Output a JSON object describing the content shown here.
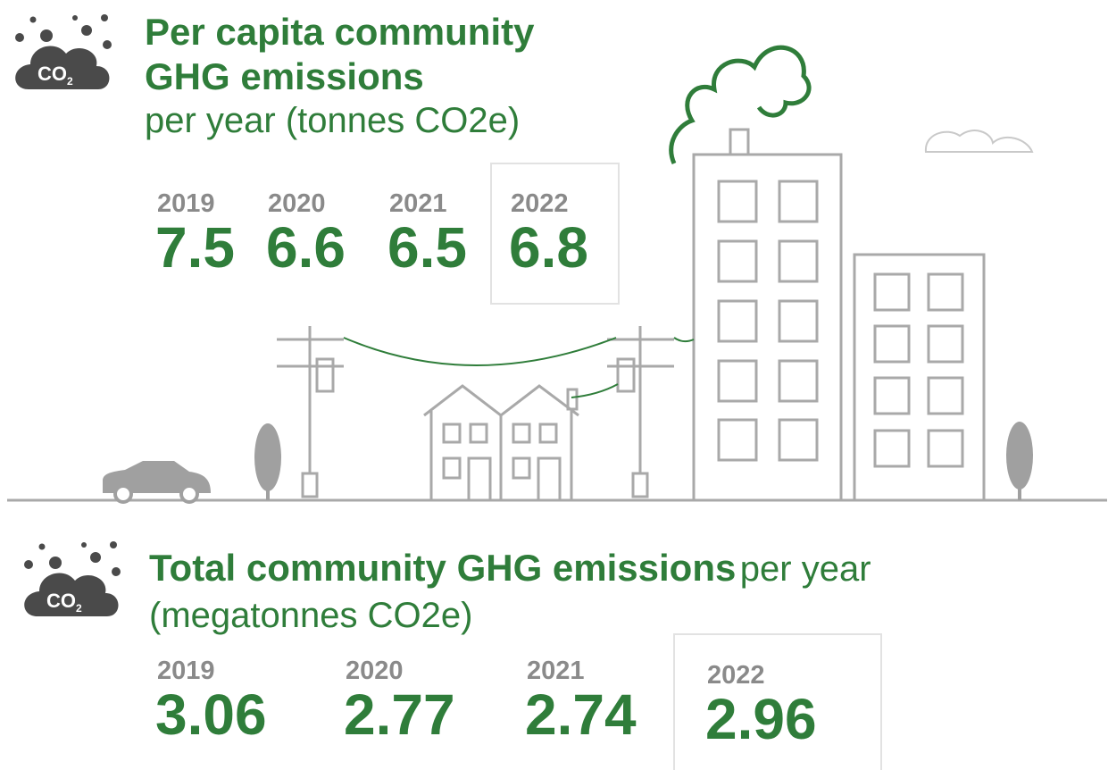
{
  "sections": [
    {
      "icon": {
        "label": "CO",
        "sub": "2"
      },
      "title_lines": [
        "Per capita community",
        "GHG emissions"
      ],
      "subtitle": "per year (tonnes CO2e)",
      "stats": [
        {
          "year": 2019,
          "value": 7.5
        },
        {
          "year": 2020,
          "value": 6.6
        },
        {
          "year": 2021,
          "value": 6.5
        },
        {
          "year": 2022,
          "value": 6.8
        }
      ]
    },
    {
      "icon": {
        "label": "CO",
        "sub": "2"
      },
      "title": "Total community GHG emissions",
      "title_rest": "per year",
      "subtitle": "(megatonnes CO2e)",
      "stats": [
        {
          "year": 2019,
          "value": 3.06
        },
        {
          "year": 2020,
          "value": 2.77
        },
        {
          "year": 2021,
          "value": 2.74
        },
        {
          "year": 2022,
          "value": 2.96
        }
      ]
    }
  ]
}
